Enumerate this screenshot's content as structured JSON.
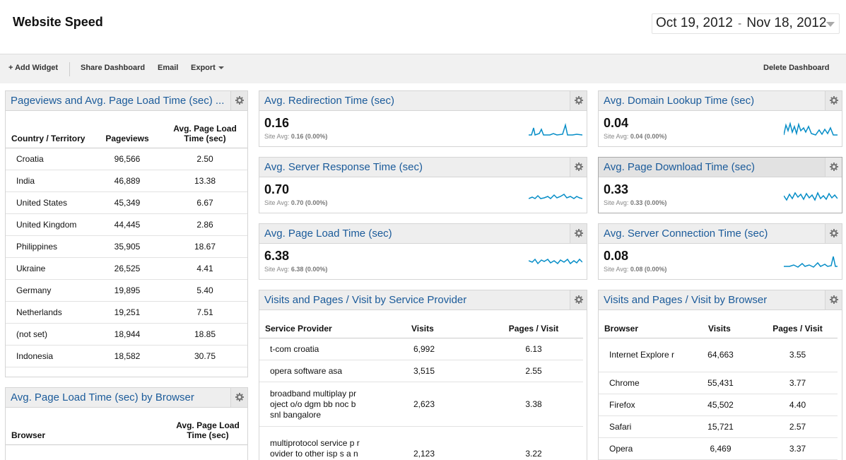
{
  "header": {
    "title": "Website Speed",
    "date_start": "Oct 19, 2012",
    "date_sep": "-",
    "date_end": "Nov 18, 2012"
  },
  "toolbar": {
    "add_widget": "+ Add Widget",
    "share": "Share Dashboard",
    "email": "Email",
    "export": "Export",
    "delete": "Delete Dashboard"
  },
  "site_avg_label": "Site Avg:",
  "colors": {
    "link": "#1b5b9a",
    "spark": "#058dc7"
  },
  "widgets": {
    "country": {
      "title": "Pageviews and Avg. Page Load Time (sec) ...",
      "headers": [
        "Country / Territory",
        "Pageviews",
        "Avg. Page Load Time (sec)"
      ],
      "rows": [
        [
          "Croatia",
          "96,566",
          "2.50"
        ],
        [
          "India",
          "46,889",
          "13.38"
        ],
        [
          "United States",
          "45,349",
          "6.67"
        ],
        [
          "United Kingdom",
          "44,445",
          "2.86"
        ],
        [
          "Philippines",
          "35,905",
          "18.67"
        ],
        [
          "Ukraine",
          "26,525",
          "4.41"
        ],
        [
          "Germany",
          "19,895",
          "5.40"
        ],
        [
          "Netherlands",
          "19,251",
          "7.51"
        ],
        [
          "(not set)",
          "18,944",
          "18.85"
        ],
        [
          "Indonesia",
          "18,582",
          "30.75"
        ]
      ]
    },
    "browser_load": {
      "title": "Avg. Page Load Time (sec) by Browser",
      "headers": [
        "Browser",
        "Avg. Page Load Time (sec)"
      ]
    },
    "redirect": {
      "title": "Avg. Redirection Time (sec)",
      "value": "0.16",
      "avg": "0.16 (0.00%)"
    },
    "server_response": {
      "title": "Avg. Server Response Time (sec)",
      "value": "0.70",
      "avg": "0.70 (0.00%)"
    },
    "page_load": {
      "title": "Avg. Page Load Time (sec)",
      "value": "6.38",
      "avg": "6.38 (0.00%)"
    },
    "domain_lookup": {
      "title": "Avg. Domain Lookup Time (sec)",
      "value": "0.04",
      "avg": "0.04 (0.00%)"
    },
    "page_download": {
      "title": "Avg. Page Download Time (sec)",
      "value": "0.33",
      "avg": "0.33 (0.00%)"
    },
    "server_connection": {
      "title": "Avg. Server Connection Time (sec)",
      "value": "0.08",
      "avg": "0.08 (0.00%)"
    },
    "provider": {
      "title": "Visits and Pages / Visit by Service Provider",
      "headers": [
        "Service Provider",
        "Visits",
        "Pages / Visit"
      ],
      "rows": [
        [
          "t-com croatia",
          "6,992",
          "6.13"
        ],
        [
          "opera software asa",
          "3,515",
          "2.55"
        ],
        [
          "broadband multiplay pr oject o/o dgm bb noc b snl bangalore",
          "2,623",
          "3.38"
        ],
        [
          "multiprotocol service p rovider to other isp s a nd end users",
          "2,123",
          "3.22"
        ]
      ]
    },
    "browser": {
      "title": "Visits and Pages / Visit by Browser",
      "headers": [
        "Browser",
        "Visits",
        "Pages / Visit"
      ],
      "rows": [
        [
          "Internet Explore r",
          "64,663",
          "3.55"
        ],
        [
          "Chrome",
          "55,431",
          "3.77"
        ],
        [
          "Firefox",
          "45,502",
          "4.40"
        ],
        [
          "Safari",
          "15,721",
          "2.57"
        ],
        [
          "Opera",
          "6,469",
          "3.37"
        ]
      ]
    }
  }
}
